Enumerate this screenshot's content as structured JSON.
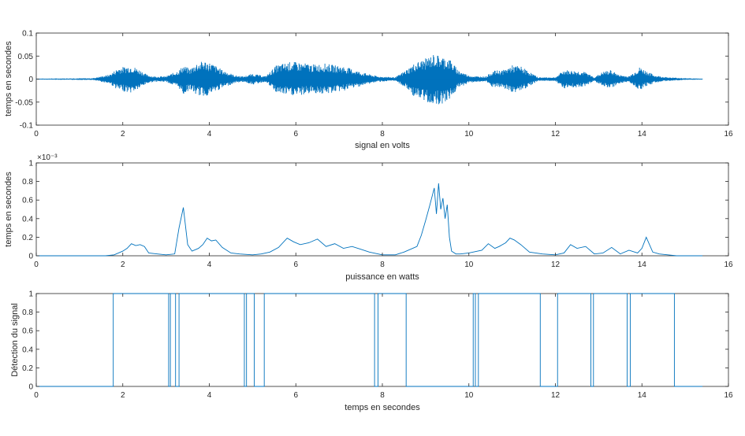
{
  "chart_data": [
    {
      "type": "line",
      "title": "",
      "xlabel": "signal en volts",
      "ylabel": "temps en secondes",
      "xlim": [
        0,
        16
      ],
      "ylim": [
        -0.1,
        0.1
      ],
      "xticks": [
        0,
        2,
        4,
        6,
        8,
        10,
        12,
        14,
        16
      ],
      "yticks": [
        -0.1,
        -0.05,
        0,
        0.05,
        0.1
      ],
      "ytick_labels": [
        "-0.1",
        "-0.05",
        "0",
        "0.05",
        "0.1"
      ],
      "grid": false,
      "color": "#0072BD",
      "envelope": {
        "x": [
          0,
          1.3,
          1.7,
          1.9,
          2.2,
          2.4,
          2.55,
          2.7,
          3.0,
          3.3,
          3.4,
          3.55,
          3.7,
          3.9,
          4.05,
          4.3,
          4.6,
          4.8,
          5.0,
          5.3,
          5.55,
          5.7,
          5.9,
          6.1,
          6.4,
          6.7,
          6.9,
          7.1,
          7.3,
          7.55,
          7.9,
          8.3,
          8.55,
          8.75,
          9.0,
          9.2,
          9.35,
          9.55,
          9.75,
          10.0,
          10.2,
          10.4,
          10.55,
          10.8,
          11.0,
          11.2,
          11.6,
          12.0,
          12.2,
          12.5,
          12.7,
          12.9,
          13.1,
          13.3,
          13.45,
          13.7,
          13.95,
          14.1,
          14.3,
          14.6,
          15.0,
          15.4
        ],
        "upper": [
          0.001,
          0.002,
          0.01,
          0.025,
          0.03,
          0.02,
          0.01,
          0.006,
          0.006,
          0.02,
          0.03,
          0.022,
          0.035,
          0.04,
          0.035,
          0.02,
          0.008,
          0.006,
          0.012,
          0.006,
          0.03,
          0.034,
          0.038,
          0.036,
          0.032,
          0.034,
          0.03,
          0.028,
          0.022,
          0.014,
          0.006,
          0.004,
          0.02,
          0.035,
          0.045,
          0.055,
          0.05,
          0.045,
          0.02,
          0.008,
          0.006,
          0.006,
          0.018,
          0.02,
          0.03,
          0.028,
          0.004,
          0.004,
          0.02,
          0.018,
          0.015,
          0.004,
          0.016,
          0.02,
          0.01,
          0.006,
          0.026,
          0.018,
          0.008,
          0.004,
          0.002,
          0.001
        ],
        "lower": [
          -0.001,
          -0.002,
          -0.01,
          -0.025,
          -0.03,
          -0.02,
          -0.01,
          -0.006,
          -0.006,
          -0.02,
          -0.035,
          -0.022,
          -0.035,
          -0.038,
          -0.032,
          -0.02,
          -0.008,
          -0.006,
          -0.012,
          -0.006,
          -0.03,
          -0.034,
          -0.036,
          -0.036,
          -0.03,
          -0.034,
          -0.028,
          -0.026,
          -0.02,
          -0.014,
          -0.006,
          -0.004,
          -0.02,
          -0.04,
          -0.05,
          -0.055,
          -0.055,
          -0.045,
          -0.02,
          -0.008,
          -0.006,
          -0.006,
          -0.018,
          -0.02,
          -0.03,
          -0.026,
          -0.004,
          -0.004,
          -0.02,
          -0.018,
          -0.015,
          -0.004,
          -0.016,
          -0.02,
          -0.01,
          -0.006,
          -0.024,
          -0.016,
          -0.008,
          -0.004,
          -0.002,
          -0.001
        ]
      }
    },
    {
      "type": "line",
      "title": "",
      "xlabel": "puissance en watts",
      "ylabel": "temps en secondes",
      "xlim": [
        0,
        16
      ],
      "ylim": [
        0,
        1
      ],
      "xticks": [
        0,
        2,
        4,
        6,
        8,
        10,
        12,
        14,
        16
      ],
      "yticks": [
        0,
        0.2,
        0.4,
        0.6,
        0.8,
        1
      ],
      "ytick_labels": [
        "0",
        "0.2",
        "0.4",
        "0.6",
        "0.8",
        "1"
      ],
      "y_multiplier": "×10⁻³",
      "grid": false,
      "color": "#0072BD",
      "x": [
        0,
        1.6,
        1.8,
        2.0,
        2.1,
        2.2,
        2.3,
        2.4,
        2.5,
        2.6,
        2.8,
        3.0,
        3.2,
        3.3,
        3.4,
        3.5,
        3.6,
        3.75,
        3.85,
        3.95,
        4.05,
        4.15,
        4.3,
        4.5,
        4.7,
        5.0,
        5.2,
        5.4,
        5.6,
        5.8,
        5.95,
        6.1,
        6.3,
        6.5,
        6.7,
        6.9,
        7.1,
        7.3,
        7.5,
        7.7,
        8.0,
        8.3,
        8.5,
        8.7,
        8.8,
        8.9,
        9.0,
        9.1,
        9.2,
        9.25,
        9.3,
        9.35,
        9.4,
        9.45,
        9.5,
        9.55,
        9.6,
        9.7,
        9.8,
        10.0,
        10.3,
        10.45,
        10.6,
        10.7,
        10.85,
        10.95,
        11.05,
        11.2,
        11.4,
        11.7,
        12.0,
        12.2,
        12.35,
        12.5,
        12.7,
        12.9,
        13.1,
        13.3,
        13.5,
        13.7,
        13.9,
        14.0,
        14.1,
        14.25,
        14.4,
        14.6,
        14.8,
        15.0,
        15.4
      ],
      "y": [
        0,
        0,
        0.01,
        0.05,
        0.08,
        0.13,
        0.11,
        0.12,
        0.1,
        0.03,
        0.02,
        0.01,
        0.02,
        0.3,
        0.52,
        0.12,
        0.05,
        0.08,
        0.12,
        0.19,
        0.16,
        0.17,
        0.09,
        0.03,
        0.02,
        0.01,
        0.02,
        0.04,
        0.09,
        0.19,
        0.15,
        0.12,
        0.14,
        0.18,
        0.1,
        0.13,
        0.08,
        0.1,
        0.07,
        0.04,
        0.01,
        0.01,
        0.04,
        0.08,
        0.1,
        0.22,
        0.38,
        0.55,
        0.73,
        0.45,
        0.78,
        0.5,
        0.62,
        0.4,
        0.55,
        0.2,
        0.05,
        0.02,
        0.02,
        0.03,
        0.06,
        0.13,
        0.08,
        0.1,
        0.14,
        0.19,
        0.17,
        0.12,
        0.04,
        0.02,
        0.01,
        0.03,
        0.12,
        0.08,
        0.1,
        0.02,
        0.03,
        0.09,
        0.02,
        0.06,
        0.03,
        0.08,
        0.2,
        0.04,
        0.02,
        0.01,
        0,
        0,
        0
      ]
    },
    {
      "type": "line",
      "title": "",
      "xlabel": "temps en secondes",
      "ylabel": "Détection du signal",
      "xlim": [
        0,
        16
      ],
      "ylim": [
        0,
        1
      ],
      "xticks": [
        0,
        2,
        4,
        6,
        8,
        10,
        12,
        14,
        16
      ],
      "yticks": [
        0,
        0.2,
        0.4,
        0.6,
        0.8,
        1
      ],
      "ytick_labels": [
        "0",
        "0.2",
        "0.4",
        "0.6",
        "0.8",
        "1"
      ],
      "grid": false,
      "color": "#0072BD",
      "on_intervals": [
        [
          1.78,
          3.06
        ],
        [
          3.1,
          3.22
        ],
        [
          3.3,
          4.81
        ],
        [
          4.86,
          5.04
        ],
        [
          5.27,
          7.82
        ],
        [
          7.9,
          8.55
        ],
        [
          10.1,
          10.15
        ],
        [
          10.22,
          11.65
        ],
        [
          12.05,
          12.82
        ],
        [
          12.88,
          13.66
        ],
        [
          13.73,
          14.75
        ]
      ]
    }
  ]
}
